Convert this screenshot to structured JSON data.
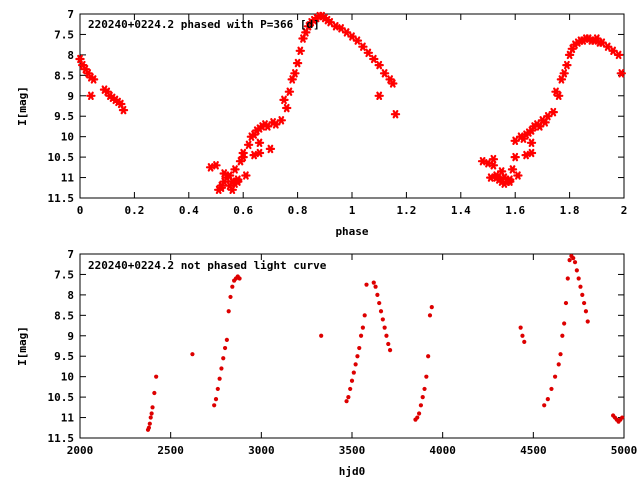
{
  "chart_data": [
    {
      "type": "scatter",
      "title": "220240+0224.2 phased with P=366 [d]",
      "xlabel": "phase",
      "ylabel": "I[mag]",
      "xlim": [
        0,
        2
      ],
      "ylim": [
        11.5,
        7
      ],
      "y_inverted": true,
      "xticks": [
        "0",
        "0.2",
        "0.4",
        "0.6",
        "0.8",
        "1",
        "1.2",
        "1.4",
        "1.6",
        "1.8",
        "2"
      ],
      "yticks": [
        "7",
        "7.5",
        "8",
        "8.5",
        "9",
        "9.5",
        "10",
        "10.5",
        "11",
        "11.5"
      ],
      "grid": false,
      "marker": "star",
      "color": "#ff0000",
      "series": [
        {
          "x": [
            0.0,
            0.01,
            0.02,
            0.03,
            0.04,
            0.05,
            0.04,
            0.09,
            0.1,
            0.11,
            0.12,
            0.13,
            0.14,
            0.15,
            0.16,
            0.48,
            0.5,
            0.52,
            0.51,
            0.53,
            0.54,
            0.55,
            0.56,
            0.57,
            0.58,
            0.59,
            0.6,
            0.53,
            0.55,
            0.57,
            0.52,
            0.56,
            0.58,
            0.61,
            0.6,
            0.62,
            0.63,
            0.64,
            0.65,
            0.66,
            0.67,
            0.68,
            0.66,
            0.7,
            0.72,
            0.74,
            0.76,
            0.64,
            0.66,
            0.69,
            0.71,
            0.75,
            0.77,
            0.78,
            0.79,
            0.8,
            0.81,
            0.82,
            0.83,
            0.84,
            0.85,
            0.86,
            0.87,
            0.88,
            0.89,
            0.9,
            0.91,
            0.92,
            0.94,
            0.96,
            0.98,
            1.0,
            1.02,
            1.04,
            1.06,
            1.08,
            1.1,
            1.12,
            1.14,
            1.15,
            1.1,
            1.16
          ],
          "y": [
            8.1,
            8.25,
            8.35,
            8.45,
            8.55,
            8.6,
            9.0,
            8.85,
            8.9,
            9.0,
            9.05,
            9.1,
            9.15,
            9.2,
            9.35,
            10.75,
            10.7,
            11.2,
            11.3,
            11.1,
            11.0,
            10.95,
            11.1,
            11.15,
            11.05,
            10.6,
            10.5,
            10.9,
            11.2,
            10.8,
            11.25,
            11.3,
            11.1,
            10.95,
            10.4,
            10.2,
            10.0,
            9.95,
            9.85,
            9.8,
            9.75,
            9.7,
            10.4,
            10.3,
            9.7,
            9.6,
            9.3,
            10.45,
            10.15,
            9.75,
            9.65,
            9.1,
            8.9,
            8.6,
            8.45,
            8.2,
            7.9,
            7.6,
            7.45,
            7.3,
            7.2,
            7.15,
            7.1,
            7.05,
            7.05,
            7.1,
            7.15,
            7.2,
            7.3,
            7.35,
            7.45,
            7.55,
            7.65,
            7.8,
            7.95,
            8.1,
            8.25,
            8.45,
            8.6,
            8.7,
            9.0,
            9.45
          ]
        },
        {
          "x": [
            1.48,
            1.5,
            1.52,
            1.51,
            1.53,
            1.54,
            1.55,
            1.56,
            1.57,
            1.58,
            1.59,
            1.6,
            1.53,
            1.55,
            1.57,
            1.52,
            1.56,
            1.58,
            1.61,
            1.6,
            1.62,
            1.63,
            1.64,
            1.65,
            1.66,
            1.67,
            1.68,
            1.66,
            1.7,
            1.72,
            1.74,
            1.76,
            1.64,
            1.66,
            1.69,
            1.71,
            1.75,
            1.77,
            1.78,
            1.79,
            1.8,
            1.81,
            1.82,
            1.83,
            1.84,
            1.85,
            1.86,
            1.87,
            1.88,
            1.89,
            1.9,
            1.91,
            1.92,
            1.94,
            1.96,
            1.98,
            1.99
          ],
          "y": [
            10.6,
            10.65,
            10.55,
            11.0,
            10.95,
            11.05,
            11.1,
            11.0,
            11.1,
            11.05,
            10.8,
            10.5,
            11.0,
            10.85,
            11.1,
            10.7,
            11.15,
            11.1,
            10.95,
            10.1,
            10.0,
            10.05,
            9.95,
            9.9,
            9.85,
            9.75,
            9.7,
            10.4,
            9.6,
            9.5,
            9.4,
            9.0,
            10.45,
            10.15,
            9.75,
            9.65,
            8.9,
            8.6,
            8.45,
            8.25,
            8.0,
            7.85,
            7.75,
            7.7,
            7.65,
            7.65,
            7.6,
            7.6,
            7.65,
            7.65,
            7.6,
            7.7,
            7.7,
            7.8,
            7.9,
            8.0,
            8.45
          ]
        }
      ]
    },
    {
      "type": "scatter",
      "title": "220240+0224.2 not phased light curve",
      "xlabel": "hjd0",
      "ylabel": "I[mag]",
      "xlim": [
        2000,
        5000
      ],
      "ylim": [
        11.5,
        7
      ],
      "y_inverted": true,
      "xticks": [
        "2000",
        "2500",
        "3000",
        "3500",
        "4000",
        "4500",
        "5000"
      ],
      "yticks": [
        "7",
        "7.5",
        "8",
        "8.5",
        "9",
        "9.5",
        "10",
        "10.5",
        "11",
        "11.5"
      ],
      "grid": false,
      "marker": "dot",
      "color": "#dd0000",
      "series": [
        {
          "x": [
            2375,
            2380,
            2385,
            2390,
            2395,
            2400,
            2410,
            2420,
            2620,
            2740,
            2750,
            2760,
            2770,
            2780,
            2790,
            2800,
            2810,
            2820,
            2830,
            2840,
            2850,
            2860,
            2870,
            2880,
            3330,
            3470,
            3480,
            3490,
            3500,
            3510,
            3520,
            3530,
            3540,
            3550,
            3560,
            3570,
            3580,
            3620,
            3630,
            3640,
            3650,
            3660,
            3670,
            3680,
            3690,
            3700,
            3710,
            3850,
            3860,
            3870,
            3880,
            3890,
            3900,
            3910,
            3920,
            3930,
            3940,
            4430,
            4440,
            4450,
            4560,
            4580,
            4600,
            4620,
            4640,
            4650,
            4660,
            4670,
            4680,
            4690,
            4700,
            4710,
            4720,
            4730,
            4740,
            4750,
            4760,
            4770,
            4780,
            4790,
            4800,
            4940,
            4950,
            4960,
            4970,
            4980,
            4990
          ],
          "y": [
            11.3,
            11.25,
            11.15,
            11.0,
            10.9,
            10.75,
            10.4,
            10.0,
            9.45,
            10.7,
            10.55,
            10.3,
            10.05,
            9.8,
            9.55,
            9.3,
            9.1,
            8.4,
            8.05,
            7.8,
            7.65,
            7.6,
            7.55,
            7.6,
            9.0,
            10.6,
            10.5,
            10.3,
            10.1,
            9.9,
            9.7,
            9.5,
            9.3,
            9.0,
            8.8,
            8.5,
            7.75,
            7.7,
            7.8,
            8.0,
            8.2,
            8.4,
            8.6,
            8.8,
            9.0,
            9.2,
            9.35,
            11.05,
            11.0,
            10.9,
            10.7,
            10.5,
            10.3,
            10.0,
            9.5,
            8.5,
            8.3,
            8.8,
            9.0,
            9.15,
            10.7,
            10.55,
            10.3,
            10.0,
            9.7,
            9.45,
            9.0,
            8.7,
            8.2,
            7.6,
            7.15,
            7.05,
            7.1,
            7.2,
            7.4,
            7.6,
            7.8,
            8.0,
            8.2,
            8.4,
            8.65,
            10.95,
            11.0,
            11.05,
            11.1,
            11.05,
            11.0
          ]
        }
      ]
    }
  ]
}
